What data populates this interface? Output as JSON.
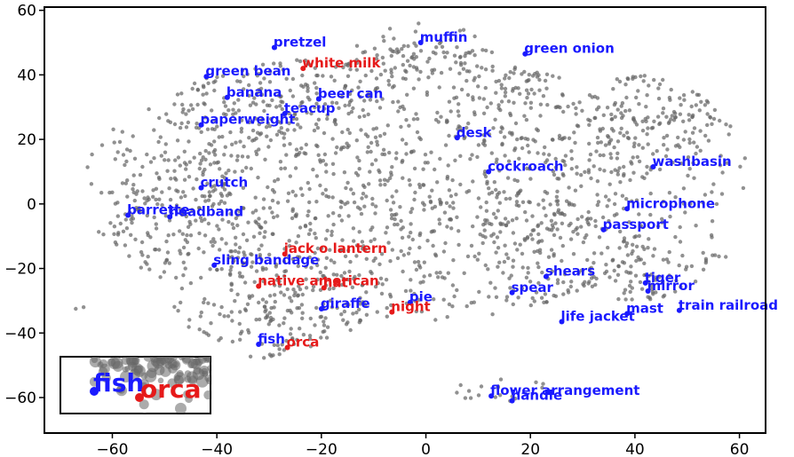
{
  "chart_data": {
    "type": "scatter",
    "title": "",
    "xlabel": "",
    "ylabel": "",
    "xlim": [
      -73,
      65
    ],
    "ylim": [
      -71,
      61
    ],
    "xticks": [
      -60,
      -40,
      -20,
      0,
      20,
      40,
      60
    ],
    "yticks": [
      -60,
      -40,
      -20,
      0,
      20,
      40,
      60
    ],
    "xtick_labels": [
      "−60",
      "−40",
      "−20",
      "0",
      "20",
      "40",
      "60"
    ],
    "ytick_labels": [
      "−60",
      "−40",
      "−20",
      "0",
      "20",
      "40",
      "60"
    ],
    "grid": false,
    "background_cloud_color": "#666666",
    "series": [
      {
        "color": "#1a1aff",
        "points": [
          {
            "label": "pretzel",
            "x": -29,
            "y": 48.5
          },
          {
            "label": "muffin",
            "x": -1,
            "y": 50
          },
          {
            "label": "green onion",
            "x": 19,
            "y": 46.5
          },
          {
            "label": "green bean",
            "x": -42,
            "y": 39.5
          },
          {
            "label": "banana",
            "x": -38,
            "y": 33
          },
          {
            "label": "beer can",
            "x": -20.5,
            "y": 32.5
          },
          {
            "label": "teacup",
            "x": -27,
            "y": 28
          },
          {
            "label": "paperweight",
            "x": -43,
            "y": 24.5
          },
          {
            "label": "desk",
            "x": 6,
            "y": 20.5
          },
          {
            "label": "cockroach",
            "x": 12,
            "y": 10
          },
          {
            "label": "washbasin",
            "x": 43.5,
            "y": 11.5
          },
          {
            "label": "crutch",
            "x": -43,
            "y": 5
          },
          {
            "label": "microphone",
            "x": 38.5,
            "y": -1.5
          },
          {
            "label": "barrette",
            "x": -57,
            "y": -3.5
          },
          {
            "label": "headband",
            "x": -49,
            "y": -4
          },
          {
            "label": "passport",
            "x": 34,
            "y": -8
          },
          {
            "label": "sling bandage",
            "x": -40.5,
            "y": -19
          },
          {
            "label": "shears",
            "x": 23,
            "y": -22.5
          },
          {
            "label": "tiger",
            "x": 42,
            "y": -24.5
          },
          {
            "label": "mirror",
            "x": 42.5,
            "y": -27
          },
          {
            "label": "spear",
            "x": 16.5,
            "y": -27.5
          },
          {
            "label": "pie",
            "x": -3,
            "y": -30.5
          },
          {
            "label": "giraffe",
            "x": -20,
            "y": -32.5
          },
          {
            "label": "train railroad",
            "x": 48.5,
            "y": -33
          },
          {
            "label": "mast",
            "x": 38.5,
            "y": -34
          },
          {
            "label": "life jacket",
            "x": 26,
            "y": -36.5
          },
          {
            "label": "fish",
            "x": -32,
            "y": -43.5
          },
          {
            "label": "flower arrangement",
            "x": 12.5,
            "y": -59.5
          },
          {
            "label": "handle",
            "x": 16.5,
            "y": -61
          }
        ]
      },
      {
        "color": "#e61a1a",
        "points": [
          {
            "label": "white milk",
            "x": -23.5,
            "y": 42
          },
          {
            "label": "jack o lantern",
            "x": -27,
            "y": -15.5
          },
          {
            "label": "native american",
            "x": -32,
            "y": -25.5
          },
          {
            "label": "hat",
            "x": -19.5,
            "y": -26
          },
          {
            "label": "night",
            "x": -6.5,
            "y": -33.5
          },
          {
            "label": "orca",
            "x": -26.5,
            "y": -44.5
          }
        ]
      }
    ],
    "inset": {
      "labels": [
        {
          "label": "fish",
          "color": "#1a1aff"
        },
        {
          "label": "orca",
          "color": "#e61a1a"
        }
      ]
    }
  }
}
